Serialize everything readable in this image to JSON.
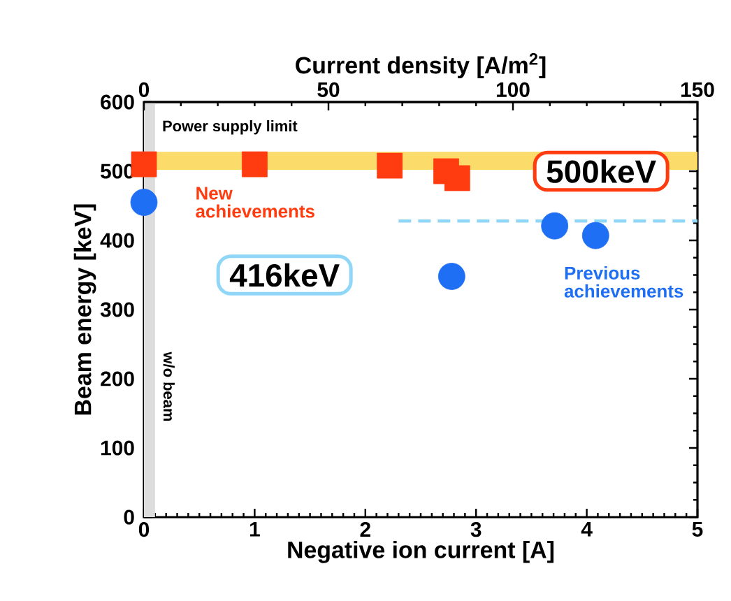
{
  "chart_data": {
    "type": "scatter",
    "xlabel": "Negative ion current [A]",
    "ylabel": "Beam energy [keV]",
    "x2label": "Current density [A/m$^{2}$]",
    "xlim": [
      0,
      5
    ],
    "xticks": [
      0,
      1,
      2,
      3,
      4,
      5
    ],
    "ylim": [
      0,
      600
    ],
    "yticks": [
      0,
      100,
      200,
      300,
      400,
      500,
      600
    ],
    "x2lim": [
      0,
      150
    ],
    "x2ticks": [
      0,
      50,
      100,
      150
    ],
    "series": [
      {
        "name": "New achievements",
        "marker": "square",
        "color": "#ff3c10",
        "x": [
          0,
          1.0,
          2.22,
          2.73,
          2.83
        ],
        "values": [
          510,
          510,
          508,
          500,
          490
        ]
      },
      {
        "name": "Previous achievements",
        "marker": "circle",
        "color": "#1f6ff5",
        "x": [
          0,
          2.78,
          3.71,
          4.08
        ],
        "values": [
          455,
          348,
          421,
          407
        ]
      },
      {
        "type": "line",
        "line_style": "dashed",
        "marker": "none",
        "color": "#8fd6f7",
        "x": [
          2.3,
          5
        ],
        "values": [
          428,
          428
        ]
      }
    ],
    "bands": [
      {
        "axis": "y",
        "from": 502,
        "to": 528,
        "label": "Power supply limit",
        "color": "#fbdc6a"
      },
      {
        "axis": "x",
        "from": 0,
        "to": 0.1,
        "label": "w/o beam",
        "color": "#dddddd"
      }
    ],
    "annotations": [
      "500keV",
      "416keV"
    ],
    "legend": false
  }
}
